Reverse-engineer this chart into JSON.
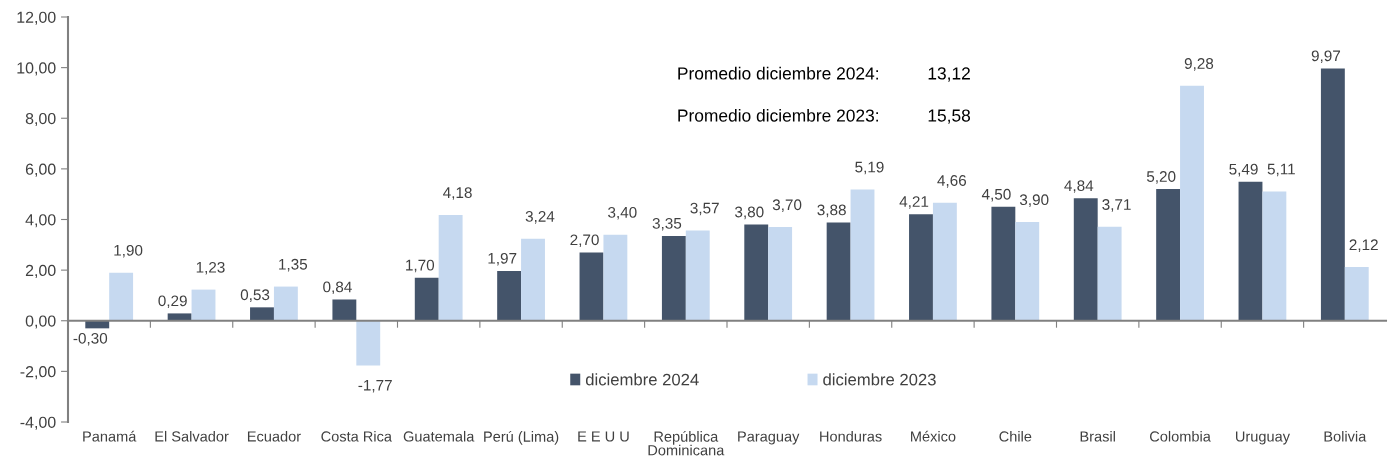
{
  "chart_data": {
    "type": "bar",
    "categories": [
      "Panamá",
      "El Salvador",
      "Ecuador",
      "Costa Rica",
      "Guatemala",
      "Perú (Lima)",
      "E E U U",
      "República Dominicana",
      "Paraguay",
      "Honduras",
      "México",
      "Chile",
      "Brasil",
      "Colombia",
      "Uruguay",
      "Bolivia"
    ],
    "series": [
      {
        "name": "diciembre 2024",
        "color": "#44546a",
        "values": [
          -0.3,
          0.29,
          0.53,
          0.84,
          1.7,
          1.97,
          2.7,
          3.35,
          3.8,
          3.88,
          4.21,
          4.5,
          4.84,
          5.2,
          5.49,
          9.97
        ],
        "value_labels": [
          "-0,30",
          "0,29",
          "0,53",
          "0,84",
          "1,70",
          "1,97",
          "2,70",
          "3,35",
          "3,80",
          "3,88",
          "4,21",
          "4,50",
          "4,84",
          "5,20",
          "5,49",
          "9,97"
        ]
      },
      {
        "name": "diciembre 2023",
        "color": "#c6d9f0",
        "values": [
          1.9,
          1.23,
          1.35,
          -1.77,
          4.18,
          3.24,
          3.4,
          3.57,
          3.7,
          5.19,
          4.66,
          3.9,
          3.71,
          9.28,
          5.11,
          2.12
        ],
        "value_labels": [
          "1,90",
          "1,23",
          "1,35",
          "-1,77",
          "4,18",
          "3,24",
          "3,40",
          "3,57",
          "3,70",
          "5,19",
          "4,66",
          "3,90",
          "3,71",
          "9,28",
          "5,11",
          "2,12"
        ]
      }
    ],
    "ylim": [
      -4,
      12
    ],
    "yticks": [
      {
        "value": -4,
        "label": "-4,00"
      },
      {
        "value": -2,
        "label": "-2,00"
      },
      {
        "value": 0,
        "label": "0,00"
      },
      {
        "value": 2,
        "label": "2,00"
      },
      {
        "value": 4,
        "label": "4,00"
      },
      {
        "value": 6,
        "label": "6,00"
      },
      {
        "value": 8,
        "label": "8,00"
      },
      {
        "value": 10,
        "label": "10,00"
      },
      {
        "value": 12,
        "label": "12,00"
      }
    ],
    "annotations": [
      "Promedio diciembre 2024:",
      "13,12",
      "Promedio diciembre 2023:",
      "15,58"
    ],
    "legend": "bottom"
  }
}
